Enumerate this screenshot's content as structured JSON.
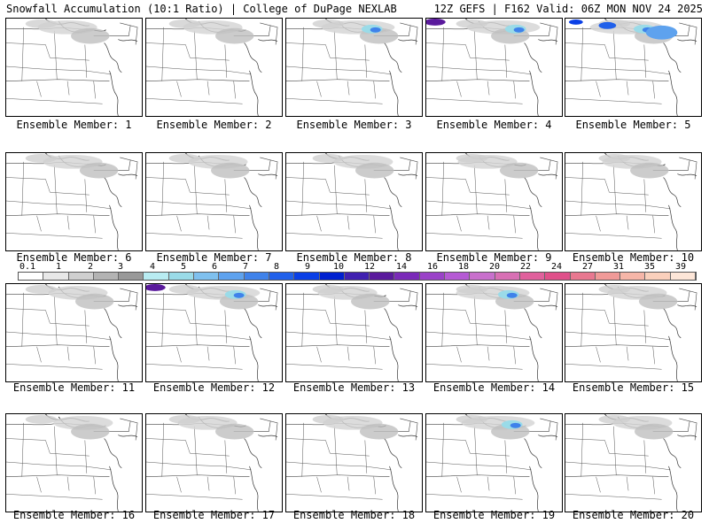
{
  "header": {
    "left": "Snowfall Accumulation (10:1 Ratio) | College of DuPage NEXLAB",
    "right": "12Z GEFS | F162 Valid: 06Z MON NOV 24 2025"
  },
  "members": [
    {
      "label": "Ensemble Member: 1",
      "snow": "light"
    },
    {
      "label": "Ensemble Member: 2",
      "snow": "light"
    },
    {
      "label": "Ensemble Member: 3",
      "snow": "moderate"
    },
    {
      "label": "Ensemble Member: 4",
      "snow": "moderate"
    },
    {
      "label": "Ensemble Member: 5",
      "snow": "heavy"
    },
    {
      "label": "Ensemble Member: 6",
      "snow": "light"
    },
    {
      "label": "Ensemble Member: 7",
      "snow": "light"
    },
    {
      "label": "Ensemble Member: 8",
      "snow": "light"
    },
    {
      "label": "Ensemble Member: 9",
      "snow": "light"
    },
    {
      "label": "Ensemble Member: 10",
      "snow": "light"
    },
    {
      "label": "Ensemble Member: 11",
      "snow": "light"
    },
    {
      "label": "Ensemble Member: 12",
      "snow": "moderate"
    },
    {
      "label": "Ensemble Member: 13",
      "snow": "light"
    },
    {
      "label": "Ensemble Member: 14",
      "snow": "moderate"
    },
    {
      "label": "Ensemble Member: 15",
      "snow": "light"
    },
    {
      "label": "Ensemble Member: 16",
      "snow": "light"
    },
    {
      "label": "Ensemble Member: 17",
      "snow": "light"
    },
    {
      "label": "Ensemble Member: 18",
      "snow": "light"
    },
    {
      "label": "Ensemble Member: 19",
      "snow": "moderate"
    },
    {
      "label": "Ensemble Member: 20",
      "snow": "light"
    }
  ],
  "colorbar": {
    "labels": [
      "0.1",
      "1",
      "2",
      "3",
      "4",
      "5",
      "6",
      "7",
      "8",
      "9",
      "10",
      "12",
      "14",
      "16",
      "18",
      "20",
      "22",
      "24",
      "27",
      "31",
      "35",
      "39"
    ],
    "colors": [
      "#ffffff",
      "#e8e8e8",
      "#cfcfcf",
      "#b3b3b3",
      "#999999",
      "#b8ecf2",
      "#9adbe8",
      "#7fc0ee",
      "#5ea2ee",
      "#3f82ea",
      "#2060ea",
      "#0a3fe6",
      "#0020d0",
      "#4020b0",
      "#5a1a9c",
      "#7a2ab8",
      "#9a42c8",
      "#b55ad4",
      "#c870cc",
      "#d870b4",
      "#e0609c",
      "#e0508a",
      "#e87890",
      "#f09a98",
      "#f6b6a8",
      "#fad0bc",
      "#fde6d8"
    ]
  }
}
